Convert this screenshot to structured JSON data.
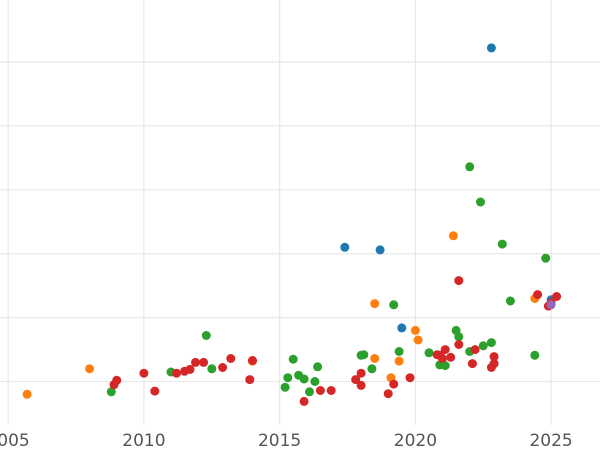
{
  "chart_data": {
    "type": "scatter",
    "title": "",
    "xlabel": "",
    "ylabel": "",
    "xlim": [
      2004.7,
      2026.8
    ],
    "ylim": [
      -6.8,
      59.7
    ],
    "x_ticks": [
      2005,
      2010,
      2015,
      2020,
      2025
    ],
    "x_tick_labels": [
      "2005",
      "2010",
      "2015",
      "2020",
      "2025"
    ],
    "y_gridlines": [
      0,
      10,
      20,
      30,
      40,
      50,
      60
    ],
    "grid": true,
    "legend": "none",
    "series": [
      {
        "color": "#1f77b4",
        "points": [
          [
            2017.4,
            21.0
          ],
          [
            2018.7,
            20.6
          ],
          [
            2019.5,
            8.4
          ],
          [
            2022.8,
            52.2
          ],
          [
            2025.0,
            12.8
          ]
        ]
      },
      {
        "color": "#ff7f0e",
        "points": [
          [
            2005.7,
            -2.0
          ],
          [
            2008.0,
            2.0
          ],
          [
            2014.0,
            3.2
          ],
          [
            2018.5,
            12.2
          ],
          [
            2018.5,
            3.6
          ],
          [
            2019.1,
            0.6
          ],
          [
            2019.4,
            3.2
          ],
          [
            2020.0,
            8.0
          ],
          [
            2020.1,
            6.5
          ],
          [
            2021.4,
            22.8
          ],
          [
            2024.4,
            13.0
          ]
        ]
      },
      {
        "color": "#2ca02c",
        "points": [
          [
            2008.8,
            -1.6
          ],
          [
            2011.0,
            1.5
          ],
          [
            2012.3,
            7.2
          ],
          [
            2012.5,
            2.0
          ],
          [
            2015.2,
            -0.9
          ],
          [
            2015.3,
            0.6
          ],
          [
            2015.5,
            3.5
          ],
          [
            2015.7,
            1.0
          ],
          [
            2015.9,
            0.4
          ],
          [
            2016.1,
            -1.6
          ],
          [
            2016.3,
            0.0
          ],
          [
            2016.4,
            2.3
          ],
          [
            2018.0,
            4.1
          ],
          [
            2018.1,
            4.2
          ],
          [
            2018.4,
            2.0
          ],
          [
            2019.2,
            12.0
          ],
          [
            2019.4,
            4.7
          ],
          [
            2020.5,
            4.5
          ],
          [
            2020.9,
            2.6
          ],
          [
            2021.1,
            2.5
          ],
          [
            2021.5,
            8.0
          ],
          [
            2021.6,
            7.0
          ],
          [
            2022.0,
            4.7
          ],
          [
            2022.0,
            33.6
          ],
          [
            2022.4,
            28.1
          ],
          [
            2022.5,
            5.6
          ],
          [
            2022.8,
            6.1
          ],
          [
            2023.2,
            21.5
          ],
          [
            2023.5,
            12.6
          ],
          [
            2024.4,
            4.1
          ],
          [
            2024.8,
            19.3
          ]
        ]
      },
      {
        "color": "#d62728",
        "points": [
          [
            2008.9,
            -0.5
          ],
          [
            2009.0,
            0.2
          ],
          [
            2010.0,
            1.3
          ],
          [
            2010.4,
            -1.5
          ],
          [
            2011.2,
            1.3
          ],
          [
            2011.5,
            1.6
          ],
          [
            2011.7,
            1.9
          ],
          [
            2011.9,
            3.0
          ],
          [
            2012.2,
            3.0
          ],
          [
            2012.9,
            2.2
          ],
          [
            2013.2,
            3.6
          ],
          [
            2013.9,
            0.3
          ],
          [
            2014.0,
            3.3
          ],
          [
            2015.9,
            -3.1
          ],
          [
            2016.5,
            -1.4
          ],
          [
            2016.9,
            -1.4
          ],
          [
            2017.8,
            0.3
          ],
          [
            2018.0,
            1.3
          ],
          [
            2018.0,
            -0.6
          ],
          [
            2019.0,
            -1.9
          ],
          [
            2019.2,
            -0.4
          ],
          [
            2019.8,
            0.6
          ],
          [
            2020.8,
            4.2
          ],
          [
            2020.9,
            4.1
          ],
          [
            2021.0,
            3.6
          ],
          [
            2021.1,
            5.0
          ],
          [
            2021.3,
            3.8
          ],
          [
            2021.6,
            15.8
          ],
          [
            2021.6,
            5.8
          ],
          [
            2022.1,
            2.8
          ],
          [
            2022.2,
            5.0
          ],
          [
            2022.8,
            2.2
          ],
          [
            2022.9,
            2.8
          ],
          [
            2022.9,
            3.9
          ],
          [
            2024.5,
            13.6
          ],
          [
            2024.9,
            11.8
          ],
          [
            2025.0,
            12.3
          ],
          [
            2025.2,
            13.3
          ]
        ]
      },
      {
        "color": "#9467bd",
        "points": [
          [
            2025.0,
            12.0
          ]
        ]
      }
    ]
  }
}
